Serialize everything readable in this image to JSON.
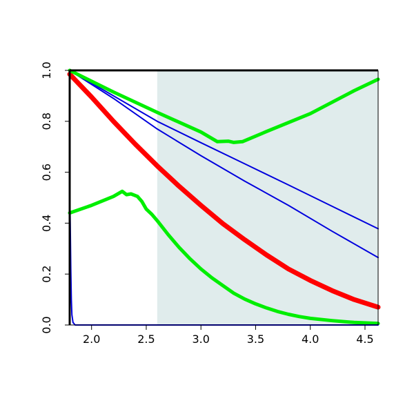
{
  "chart_data": {
    "type": "line",
    "title": "",
    "xlabel": "",
    "ylabel": "",
    "xlim": [
      1.8,
      4.62
    ],
    "ylim": [
      0.0,
      1.0
    ],
    "x_ticks": [
      "2.0",
      "2.5",
      "3.0",
      "3.5",
      "4.0",
      "4.5"
    ],
    "y_ticks": [
      "0.0",
      "0.2",
      "0.4",
      "0.6",
      "0.8",
      "1.0"
    ],
    "grid": false,
    "legend": "none",
    "shaded_region": {
      "x_start": 2.6,
      "x_end": 4.62,
      "color": "#e0ecec"
    },
    "series": [
      {
        "color": "#0000dd",
        "width": 2,
        "points": [
          [
            1.8,
            1.0
          ],
          [
            2.2,
            0.9
          ],
          [
            2.6,
            0.8
          ],
          [
            3.0,
            0.716
          ],
          [
            3.4,
            0.633
          ],
          [
            3.8,
            0.55
          ],
          [
            4.2,
            0.466
          ],
          [
            4.62,
            0.378
          ]
        ]
      },
      {
        "color": "#0000dd",
        "width": 2,
        "points": [
          [
            1.8,
            1.0
          ],
          [
            2.2,
            0.89
          ],
          [
            2.6,
            0.77
          ],
          [
            3.0,
            0.665
          ],
          [
            3.4,
            0.565
          ],
          [
            3.8,
            0.47
          ],
          [
            4.2,
            0.368
          ],
          [
            4.62,
            0.265
          ]
        ]
      },
      {
        "color": "#ff0000",
        "width": 7,
        "points": [
          [
            1.8,
            0.985
          ],
          [
            2.0,
            0.895
          ],
          [
            2.2,
            0.8
          ],
          [
            2.4,
            0.71
          ],
          [
            2.6,
            0.625
          ],
          [
            2.8,
            0.545
          ],
          [
            3.0,
            0.47
          ],
          [
            3.2,
            0.398
          ],
          [
            3.4,
            0.335
          ],
          [
            3.6,
            0.275
          ],
          [
            3.8,
            0.22
          ],
          [
            4.0,
            0.175
          ],
          [
            4.2,
            0.135
          ],
          [
            4.4,
            0.1
          ],
          [
            4.62,
            0.07
          ]
        ]
      },
      {
        "color": "#00ee00",
        "width": 5,
        "points": [
          [
            1.8,
            1.0
          ],
          [
            2.2,
            0.915
          ],
          [
            2.6,
            0.835
          ],
          [
            3.0,
            0.758
          ],
          [
            3.15,
            0.72
          ],
          [
            3.25,
            0.722
          ],
          [
            3.3,
            0.717
          ],
          [
            3.38,
            0.72
          ],
          [
            3.6,
            0.76
          ],
          [
            4.0,
            0.83
          ],
          [
            4.4,
            0.92
          ],
          [
            4.62,
            0.965
          ]
        ]
      },
      {
        "color": "#00ee00",
        "width": 5,
        "points": [
          [
            1.8,
            0.44
          ],
          [
            2.0,
            0.47
          ],
          [
            2.2,
            0.505
          ],
          [
            2.28,
            0.525
          ],
          [
            2.32,
            0.512
          ],
          [
            2.36,
            0.515
          ],
          [
            2.42,
            0.505
          ],
          [
            2.46,
            0.485
          ],
          [
            2.5,
            0.455
          ],
          [
            2.55,
            0.435
          ],
          [
            2.6,
            0.41
          ],
          [
            2.7,
            0.355
          ],
          [
            2.8,
            0.305
          ],
          [
            2.9,
            0.26
          ],
          [
            3.0,
            0.22
          ],
          [
            3.1,
            0.185
          ],
          [
            3.2,
            0.155
          ],
          [
            3.3,
            0.125
          ],
          [
            3.4,
            0.102
          ],
          [
            3.5,
            0.083
          ],
          [
            3.6,
            0.067
          ],
          [
            3.7,
            0.053
          ],
          [
            3.8,
            0.042
          ],
          [
            3.9,
            0.033
          ],
          [
            4.0,
            0.026
          ],
          [
            4.2,
            0.017
          ],
          [
            4.4,
            0.01
          ],
          [
            4.62,
            0.006
          ]
        ]
      },
      {
        "color": "#0000dd",
        "width": 2,
        "points": [
          [
            1.8,
            0.53
          ],
          [
            1.805,
            0.4
          ],
          [
            1.81,
            0.22
          ],
          [
            1.815,
            0.1
          ],
          [
            1.82,
            0.04
          ],
          [
            1.83,
            0.01
          ],
          [
            1.85,
            0.0
          ],
          [
            4.62,
            0.0
          ]
        ]
      }
    ]
  }
}
